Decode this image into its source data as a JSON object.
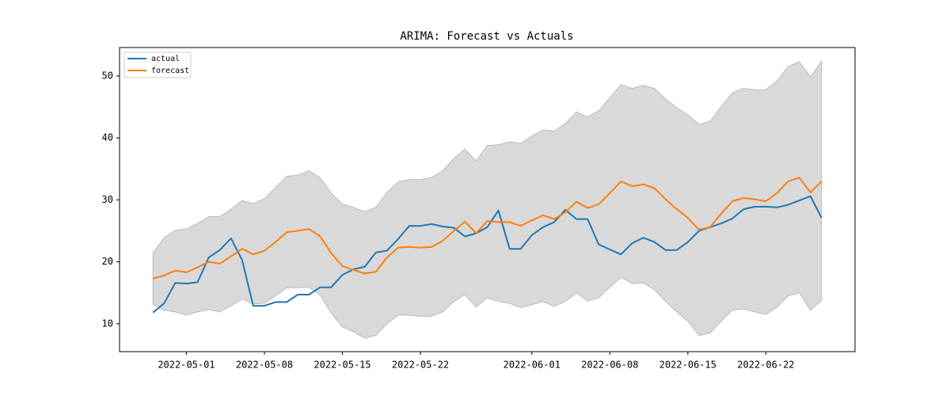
{
  "chart_data": {
    "type": "line",
    "title": "ARIMA: Forecast vs Actuals",
    "x": [
      "2022-04-28",
      "2022-04-29",
      "2022-04-30",
      "2022-05-01",
      "2022-05-02",
      "2022-05-03",
      "2022-05-04",
      "2022-05-05",
      "2022-05-06",
      "2022-05-07",
      "2022-05-08",
      "2022-05-09",
      "2022-05-10",
      "2022-05-11",
      "2022-05-12",
      "2022-05-13",
      "2022-05-14",
      "2022-05-15",
      "2022-05-16",
      "2022-05-17",
      "2022-05-18",
      "2022-05-19",
      "2022-05-20",
      "2022-05-21",
      "2022-05-22",
      "2022-05-23",
      "2022-05-24",
      "2022-05-25",
      "2022-05-26",
      "2022-05-27",
      "2022-05-28",
      "2022-05-29",
      "2022-05-30",
      "2022-05-31",
      "2022-06-01",
      "2022-06-02",
      "2022-06-03",
      "2022-06-04",
      "2022-06-05",
      "2022-06-06",
      "2022-06-07",
      "2022-06-08",
      "2022-06-09",
      "2022-06-10",
      "2022-06-11",
      "2022-06-12",
      "2022-06-13",
      "2022-06-14",
      "2022-06-15",
      "2022-06-16",
      "2022-06-17",
      "2022-06-18",
      "2022-06-19",
      "2022-06-20",
      "2022-06-21",
      "2022-06-22",
      "2022-06-23",
      "2022-06-24",
      "2022-06-25",
      "2022-06-26",
      "2022-06-27"
    ],
    "series": [
      {
        "name": "actual",
        "color": "#1f77b4",
        "values": [
          11.8,
          13.3,
          16.6,
          16.5,
          16.7,
          20.7,
          21.9,
          23.8,
          20.3,
          12.9,
          12.9,
          13.5,
          13.5,
          14.7,
          14.7,
          15.9,
          15.9,
          17.9,
          18.8,
          19.2,
          21.5,
          21.8,
          23.7,
          25.8,
          25.8,
          26.1,
          25.7,
          25.5,
          24.1,
          24.6,
          25.6,
          28.3,
          22.1,
          22.1,
          24.3,
          25.6,
          26.4,
          28.4,
          26.9,
          26.9,
          22.8,
          22.0,
          21.2,
          23.0,
          23.9,
          23.2,
          21.9,
          21.9,
          23.2,
          25.0,
          25.6,
          26.2,
          27.0,
          28.5,
          28.9,
          28.9,
          28.8,
          29.2,
          29.9,
          30.6,
          27.1
        ]
      },
      {
        "name": "forecast",
        "color": "#ff7f0e",
        "values": [
          17.3,
          17.8,
          18.6,
          18.3,
          19.1,
          20.0,
          19.7,
          20.9,
          22.1,
          21.2,
          21.8,
          23.2,
          24.8,
          25.0,
          25.3,
          24.1,
          21.4,
          19.3,
          18.7,
          18.1,
          18.4,
          20.7,
          22.3,
          22.4,
          22.3,
          22.4,
          23.4,
          25.0,
          26.5,
          24.6,
          26.6,
          26.4,
          26.4,
          25.8,
          26.7,
          27.5,
          26.9,
          28.0,
          29.7,
          28.7,
          29.3,
          31.1,
          33.0,
          32.2,
          32.5,
          31.9,
          30.1,
          28.5,
          27.1,
          25.2,
          25.6,
          27.8,
          29.8,
          30.3,
          30.1,
          29.8,
          31.1,
          33.0,
          33.6,
          31.2,
          33.0
        ]
      }
    ],
    "band": {
      "color": "#d9d9d9",
      "upper": [
        21.4,
        23.9,
        25.1,
        25.3,
        26.2,
        27.3,
        27.3,
        28.5,
        29.9,
        29.4,
        30.2,
        32.0,
        33.8,
        34.0,
        34.7,
        33.6,
        31.1,
        29.3,
        28.8,
        28.1,
        28.8,
        31.2,
        32.9,
        33.3,
        33.3,
        33.6,
        34.7,
        36.7,
        38.2,
        36.3,
        38.8,
        38.9,
        39.4,
        39.1,
        40.3,
        41.3,
        41.1,
        42.3,
        44.2,
        43.4,
        44.4,
        46.5,
        48.6,
        48.0,
        48.5,
        48.0,
        46.3,
        44.9,
        43.7,
        42.2,
        42.7,
        45.1,
        47.3,
        48.0,
        47.8,
        47.8,
        49.2,
        51.5,
        52.3,
        49.9,
        52.4
      ],
      "lower": [
        13.1,
        12.2,
        11.9,
        11.4,
        11.9,
        12.3,
        11.9,
        12.9,
        14.0,
        13.2,
        13.3,
        14.5,
        15.8,
        15.8,
        15.9,
        14.6,
        11.7,
        9.5,
        8.7,
        7.7,
        8.1,
        10.0,
        11.4,
        11.4,
        11.2,
        11.2,
        11.9,
        13.6,
        14.7,
        12.7,
        14.2,
        13.6,
        13.3,
        12.6,
        13.1,
        13.6,
        12.8,
        13.6,
        15.0,
        13.7,
        14.2,
        15.9,
        17.5,
        16.5,
        16.6,
        15.5,
        13.6,
        11.9,
        10.4,
        8.1,
        8.5,
        10.4,
        12.2,
        12.4,
        11.9,
        11.5,
        12.7,
        14.5,
        15.0,
        12.2,
        13.8
      ]
    },
    "xlim": [
      "2022-04-25",
      "2022-06-30"
    ],
    "xticks": [
      "2022-05-01",
      "2022-05-08",
      "2022-05-15",
      "2022-05-22",
      "2022-06-01",
      "2022-06-08",
      "2022-06-15",
      "2022-06-22"
    ],
    "ylim": [
      5.5,
      54.6
    ],
    "yticks": [
      10,
      20,
      30,
      40,
      50
    ],
    "legend": "upper left",
    "grid": false
  }
}
